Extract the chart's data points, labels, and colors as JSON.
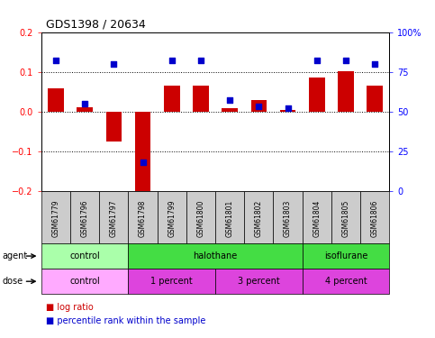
{
  "title": "GDS1398 / 20634",
  "samples": [
    "GSM61779",
    "GSM61796",
    "GSM61797",
    "GSM61798",
    "GSM61799",
    "GSM61800",
    "GSM61801",
    "GSM61802",
    "GSM61803",
    "GSM61804",
    "GSM61805",
    "GSM61806"
  ],
  "log_ratio": [
    0.058,
    0.01,
    -0.075,
    -0.2,
    0.065,
    0.065,
    0.008,
    0.03,
    0.005,
    0.085,
    0.102,
    0.065
  ],
  "percentile": [
    82,
    55,
    80,
    18,
    82,
    82,
    57,
    53,
    52,
    82,
    82,
    80
  ],
  "agent_groups": [
    {
      "label": "control",
      "start": 0,
      "end": 3,
      "color": "#aaffaa"
    },
    {
      "label": "halothane",
      "start": 3,
      "end": 9,
      "color": "#44dd44"
    },
    {
      "label": "isoflurane",
      "start": 9,
      "end": 12,
      "color": "#44dd44"
    }
  ],
  "dose_groups": [
    {
      "label": "control",
      "start": 0,
      "end": 3,
      "color": "#ffaaff"
    },
    {
      "label": "1 percent",
      "start": 3,
      "end": 6,
      "color": "#dd44dd"
    },
    {
      "label": "3 percent",
      "start": 6,
      "end": 9,
      "color": "#dd44dd"
    },
    {
      "label": "4 percent",
      "start": 9,
      "end": 12,
      "color": "#dd44dd"
    }
  ],
  "ylim": [
    -0.2,
    0.2
  ],
  "yticks_left": [
    -0.2,
    -0.1,
    0.0,
    0.1,
    0.2
  ],
  "yticks_right": [
    0,
    25,
    50,
    75,
    100
  ],
  "bar_color": "#cc0000",
  "dot_color": "#0000cc",
  "bar_width": 0.55,
  "bg_color": "#ffffff",
  "plot_bg": "#ffffff",
  "spine_color": "#000000",
  "grid_color": "#000000",
  "sample_box_color": "#cccccc",
  "title_fontsize": 9,
  "tick_fontsize": 7,
  "label_fontsize": 7,
  "legend_fontsize": 7
}
